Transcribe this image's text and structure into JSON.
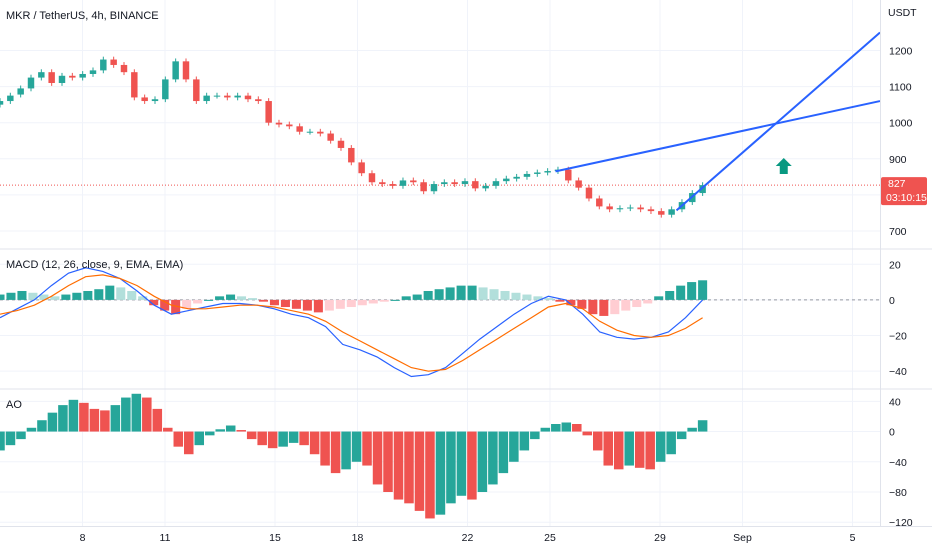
{
  "colors": {
    "up": "#26a69a",
    "down": "#ef5350",
    "macd_line": "#2962ff",
    "signal_line": "#ff6d00",
    "trendline": "#2962ff",
    "arrow": "#089981",
    "price_line": "#ef5350",
    "price_badge": "#ef5350",
    "grid": "#f0f3fa",
    "axis_text": "#131722"
  },
  "price_pane": {
    "title": "MKR / TetherUS, 4h, BINANCE",
    "currency": "USDT",
    "current_price": "827",
    "countdown": "03:10:15"
  },
  "macd_pane": {
    "title": "MACD (12, 26, close, 9, EMA, EMA)"
  },
  "ao_pane": {
    "title": "AO"
  },
  "chart_data": [
    {
      "type": "candlestick",
      "title": "MKR / TetherUS, 4h, BINANCE",
      "ylabel": "USDT",
      "ylim": [
        650,
        1340
      ],
      "yticks": [
        700,
        800,
        900,
        1000,
        1100,
        1200
      ],
      "x_ticks": [
        "8",
        "11",
        "15",
        "18",
        "22",
        "25",
        "29",
        "Sep",
        "5"
      ],
      "x_tick_days": [
        8,
        11,
        15,
        18,
        22,
        25,
        29,
        32,
        36
      ],
      "xlim_days": [
        5.0,
        37.0
      ],
      "current_price": 827,
      "closes": [
        1060,
        1075,
        1095,
        1125,
        1140,
        1110,
        1130,
        1125,
        1135,
        1145,
        1175,
        1160,
        1140,
        1070,
        1060,
        1065,
        1120,
        1170,
        1120,
        1060,
        1075,
        1075,
        1070,
        1075,
        1065,
        1060,
        1000,
        995,
        990,
        975,
        975,
        970,
        950,
        930,
        890,
        860,
        835,
        830,
        825,
        840,
        835,
        810,
        830,
        835,
        830,
        838,
        818,
        825,
        838,
        845,
        850,
        858,
        862,
        866,
        870,
        840,
        820,
        790,
        768,
        760,
        763,
        765,
        760,
        755,
        745,
        760,
        780,
        805,
        827
      ],
      "opens": [
        1050,
        1060,
        1078,
        1095,
        1125,
        1140,
        1110,
        1130,
        1125,
        1135,
        1145,
        1175,
        1160,
        1140,
        1070,
        1060,
        1065,
        1120,
        1170,
        1120,
        1060,
        1075,
        1075,
        1070,
        1075,
        1065,
        1060,
        1000,
        995,
        990,
        975,
        975,
        970,
        950,
        930,
        890,
        860,
        835,
        830,
        825,
        840,
        835,
        810,
        830,
        835,
        830,
        838,
        818,
        825,
        838,
        845,
        850,
        858,
        862,
        866,
        870,
        840,
        820,
        790,
        768,
        760,
        763,
        765,
        760,
        755,
        745,
        760,
        780,
        805
      ],
      "trendlines": [
        {
          "from": {
            "day": 25.2,
            "price": 865
          },
          "to": {
            "day": 37.0,
            "price": 1060
          }
        },
        {
          "from": {
            "day": 29.6,
            "price": 757
          },
          "to": {
            "day": 37.0,
            "price": 1250
          }
        }
      ],
      "annotation": {
        "type": "arrow-up",
        "day": 33.5,
        "price": 880
      }
    },
    {
      "type": "macd",
      "title": "MACD (12, 26, close, 9, EMA, EMA)",
      "ylim": [
        -50,
        28
      ],
      "yticks": [
        -40,
        -20,
        0,
        20
      ],
      "histogram": [
        3,
        4,
        5,
        4,
        3,
        2,
        3,
        4,
        5,
        6,
        8,
        7,
        5,
        2,
        -3,
        -6,
        -8,
        -5,
        -2,
        0,
        2,
        3,
        2,
        1,
        -1,
        -3,
        -4,
        -5,
        -6,
        -7,
        -6,
        -5,
        -4,
        -3,
        -2,
        -1,
        0,
        2,
        3,
        5,
        6,
        7,
        8,
        8,
        7,
        6,
        5,
        4,
        3,
        2,
        1,
        -1,
        -3,
        -5,
        -8,
        -9,
        -8,
        -6,
        -4,
        -2,
        2,
        5,
        8,
        10,
        11
      ],
      "macd": [
        -10,
        -5,
        0,
        8,
        15,
        18,
        16,
        12,
        5,
        -3,
        -8,
        -6,
        -4,
        -2,
        -2,
        -3,
        -5,
        -8,
        -10,
        -15,
        -25,
        -28,
        -32,
        -38,
        -43,
        -42,
        -38,
        -30,
        -22,
        -15,
        -8,
        -2,
        2,
        0,
        -8,
        -18,
        -21,
        -22,
        -21,
        -18,
        -10,
        0
      ],
      "signal": [
        -8,
        -6,
        -3,
        2,
        8,
        13,
        14,
        12,
        8,
        2,
        -3,
        -5,
        -5,
        -4,
        -3,
        -3,
        -4,
        -6,
        -8,
        -12,
        -18,
        -23,
        -28,
        -33,
        -38,
        -40,
        -39,
        -34,
        -28,
        -22,
        -16,
        -10,
        -4,
        -2,
        -5,
        -12,
        -17,
        -20,
        -21,
        -20,
        -16,
        -10
      ]
    },
    {
      "type": "histogram",
      "title": "AO",
      "ylim": [
        -125,
        55
      ],
      "yticks": [
        -120,
        -80,
        -40,
        0,
        40
      ],
      "values": [
        -25,
        -18,
        -10,
        5,
        15,
        25,
        35,
        42,
        38,
        30,
        28,
        35,
        45,
        50,
        45,
        30,
        5,
        -20,
        -30,
        -18,
        -5,
        3,
        8,
        2,
        -10,
        -18,
        -22,
        -20,
        -15,
        -18,
        -30,
        -45,
        -55,
        -50,
        -40,
        -45,
        -70,
        -80,
        -90,
        -95,
        -105,
        -115,
        -110,
        -95,
        -85,
        -90,
        -80,
        -70,
        -55,
        -40,
        -25,
        -10,
        5,
        10,
        12,
        10,
        -5,
        -25,
        -45,
        -50,
        -45,
        -48,
        -50,
        -40,
        -30,
        -10,
        5,
        15
      ]
    }
  ]
}
